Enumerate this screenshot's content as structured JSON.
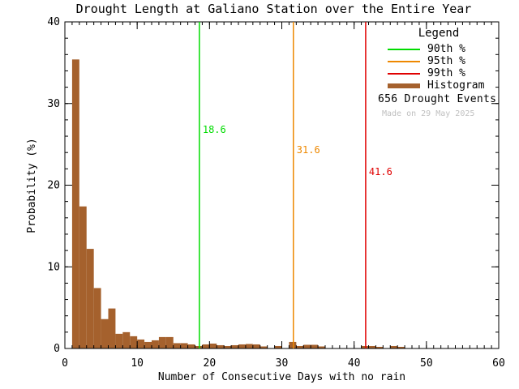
{
  "chart_data": {
    "type": "bar",
    "title": "Drought Length at Galiano Station over the Entire Year",
    "xlabel": "Number of Consecutive Days with no rain",
    "ylabel": "Probability (%)",
    "xlim": [
      0,
      60
    ],
    "ylim": [
      0,
      40
    ],
    "xticks_major": [
      0,
      10,
      20,
      30,
      40,
      50,
      60
    ],
    "x_minor_step": 1,
    "yticks_major": [
      0,
      10,
      20,
      30,
      40
    ],
    "y_minor_step": 2,
    "grid": "off",
    "legend_position": "top-right-inside",
    "bar_color": "#A5612D",
    "axis_color": "#000000",
    "muted_color": "#C0C0C0",
    "bins": {
      "days_start": 1,
      "bin_width": 1,
      "pct": [
        35.4,
        17.4,
        12.2,
        7.4,
        3.6,
        4.9,
        1.8,
        2.0,
        1.5,
        1.1,
        0.8,
        1.0,
        1.4,
        1.4,
        0.65,
        0.65,
        0.5,
        0.3,
        0.5,
        0.6,
        0.4,
        0.3,
        0.4,
        0.5,
        0.55,
        0.5,
        0.25,
        0,
        0.3,
        0,
        0.8,
        0.3,
        0.45,
        0.45,
        0.25,
        0,
        0,
        0,
        0,
        0,
        0.3,
        0.3,
        0.2,
        0,
        0.3,
        0.2
      ]
    },
    "percentile_lines": [
      {
        "name": "90th %",
        "value": 18.6,
        "label": "18.6",
        "color": "#00DC00",
        "label_y_pct": 26.8
      },
      {
        "name": "95th %",
        "value": 31.6,
        "label": "31.6",
        "color": "#EE8800",
        "label_y_pct": 24.3
      },
      {
        "name": "99th %",
        "value": 41.6,
        "label": "41.6",
        "color": "#E00000",
        "label_y_pct": 21.6
      }
    ],
    "legend": {
      "title": "Legend",
      "entries": [
        {
          "label": "90th %",
          "color": "#00DC00",
          "style": "line"
        },
        {
          "label": "95th %",
          "color": "#EE8800",
          "style": "line"
        },
        {
          "label": "99th %",
          "color": "#E00000",
          "style": "line"
        },
        {
          "label": "Histogram",
          "color": "#A5612D",
          "style": "thick-line"
        }
      ],
      "events_text": "656 Drought Events",
      "made_on": "Made on 29 May 2025"
    }
  }
}
